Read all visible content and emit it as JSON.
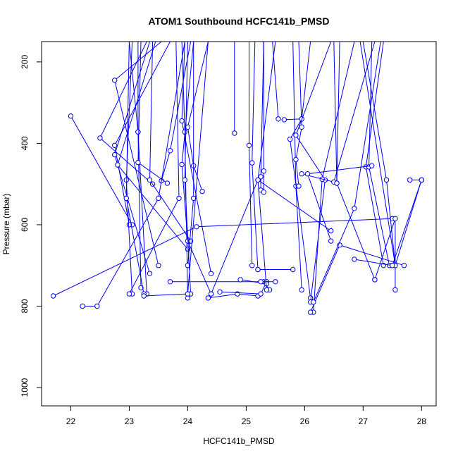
{
  "chart_data": {
    "type": "line",
    "title": "ATOM1 Southbound HCFC141b_PMSD",
    "xlabel": "HCFC141b_PMSD",
    "ylabel": "Pressure (mbar)",
    "xlim": [
      21.5,
      28.25
    ],
    "ylim": [
      1045,
      150
    ],
    "y_reversed": true,
    "x_ticks": [
      22,
      23,
      24,
      25,
      26,
      27,
      28
    ],
    "x_tick_labels": [
      "22",
      "23",
      "24",
      "25",
      "26",
      "27",
      "28"
    ],
    "y_ticks": [
      200,
      400,
      600,
      800,
      1000
    ],
    "y_tick_labels": [
      "200",
      "400",
      "600",
      "800",
      "1000"
    ],
    "grid": false,
    "legend": "none",
    "colors": {
      "series": "#0000ff",
      "axis": "#000000"
    },
    "series": [
      {
        "points": [
          [
            23.55,
            150
          ],
          [
            22.75,
            245
          ],
          [
            23.5,
            700
          ]
        ]
      },
      {
        "points": [
          [
            22.0,
            333
          ],
          [
            23.05,
            600
          ]
        ]
      },
      {
        "points": [
          [
            23.3,
            150
          ],
          [
            22.5,
            387
          ],
          [
            23.4,
            500
          ]
        ]
      },
      {
        "points": [
          [
            23.7,
            150
          ],
          [
            22.75,
            405
          ],
          [
            23.0,
            600
          ]
        ]
      },
      {
        "points": [
          [
            23.35,
            150
          ],
          [
            22.75,
            428
          ],
          [
            23.35,
            720
          ]
        ]
      },
      {
        "points": [
          [
            23.45,
            150
          ],
          [
            22.8,
            453
          ],
          [
            24.0,
            660
          ]
        ]
      },
      {
        "points": [
          [
            23.0,
            150
          ],
          [
            23.15,
            372
          ],
          [
            23.3,
            770
          ]
        ]
      },
      {
        "points": [
          [
            23.15,
            150
          ],
          [
            23.15,
            372
          ],
          [
            23.2,
            755
          ]
        ]
      },
      {
        "points": [
          [
            23.95,
            150
          ],
          [
            23.9,
            345
          ],
          [
            24.4,
            720
          ]
        ]
      },
      {
        "points": [
          [
            24.35,
            150
          ],
          [
            24.0,
            360
          ],
          [
            24.1,
            455
          ],
          [
            24.25,
            518
          ]
        ]
      },
      {
        "points": [
          [
            23.05,
            150
          ],
          [
            22.95,
            490
          ],
          [
            23.05,
            770
          ]
        ]
      },
      {
        "points": [
          [
            24.05,
            150
          ],
          [
            23.7,
            418
          ],
          [
            23.55,
            492
          ]
        ]
      },
      {
        "points": [
          [
            23.9,
            150
          ],
          [
            23.95,
            372
          ],
          [
            24.0,
            780
          ]
        ]
      },
      {
        "points": [
          [
            23.2,
            150
          ],
          [
            23.15,
            447
          ],
          [
            23.65,
            498
          ]
        ]
      },
      {
        "points": [
          [
            24.1,
            150
          ],
          [
            23.9,
            452
          ],
          [
            24.0,
            640
          ],
          [
            24.4,
            770
          ]
        ]
      },
      {
        "points": [
          [
            23.4,
            150
          ],
          [
            23.35,
            490
          ],
          [
            24.05,
            640
          ]
        ]
      },
      {
        "points": [
          [
            23.0,
            150
          ],
          [
            22.95,
            535
          ],
          [
            23.25,
            770
          ]
        ]
      },
      {
        "points": [
          [
            24.1,
            150
          ],
          [
            24.1,
            535
          ],
          [
            24.0,
            700
          ]
        ]
      },
      {
        "points": [
          [
            23.8,
            150
          ],
          [
            23.85,
            535
          ],
          [
            23.0,
            770
          ]
        ]
      },
      {
        "points": [
          [
            24.0,
            150
          ],
          [
            23.95,
            490
          ],
          [
            24.05,
            770
          ]
        ]
      },
      {
        "points": [
          [
            21.7,
            775
          ],
          [
            24.15,
            605
          ],
          [
            27.5,
            585
          ]
        ]
      },
      {
        "points": [
          [
            22.2,
            800
          ],
          [
            22.45,
            800
          ],
          [
            23.5,
            535
          ],
          [
            23.95,
            150
          ]
        ]
      },
      {
        "points": [
          [
            24.35,
            150
          ],
          [
            24.0,
            770
          ],
          [
            23.25,
            775
          ]
        ]
      },
      {
        "points": [
          [
            23.7,
            740
          ],
          [
            25.3,
            740
          ],
          [
            25.4,
            760
          ]
        ]
      },
      {
        "points": [
          [
            24.35,
            780
          ],
          [
            24.85,
            770
          ],
          [
            25.2,
            775
          ]
        ]
      },
      {
        "points": [
          [
            24.55,
            765
          ],
          [
            25.25,
            770
          ],
          [
            25.35,
            740
          ]
        ]
      },
      {
        "points": [
          [
            24.9,
            735
          ],
          [
            25.35,
            745
          ]
        ]
      },
      {
        "points": [
          [
            25.25,
            740
          ],
          [
            25.5,
            740
          ]
        ]
      },
      {
        "points": [
          [
            25.2,
            710
          ],
          [
            25.8,
            710
          ]
        ]
      },
      {
        "points": [
          [
            24.8,
            150
          ],
          [
            24.8,
            375
          ]
        ]
      },
      {
        "points": [
          [
            25.05,
            150
          ],
          [
            25.05,
            405
          ],
          [
            25.1,
            700
          ]
        ]
      },
      {
        "points": [
          [
            25.15,
            150
          ],
          [
            25.1,
            448
          ],
          [
            25.2,
            710
          ]
        ]
      },
      {
        "points": [
          [
            25.3,
            150
          ],
          [
            25.25,
            482
          ],
          [
            25.25,
            515
          ]
        ]
      },
      {
        "points": [
          [
            25.3,
            150
          ],
          [
            25.3,
            468
          ],
          [
            25.3,
            520
          ]
        ]
      },
      {
        "points": [
          [
            25.5,
            150
          ],
          [
            25.2,
            490
          ],
          [
            25.35,
            760
          ]
        ]
      },
      {
        "points": [
          [
            24.4,
            770
          ],
          [
            25.2,
            490
          ],
          [
            26.45,
            615
          ]
        ]
      },
      {
        "points": [
          [
            25.55,
            340
          ],
          [
            25.45,
            150
          ]
        ]
      },
      {
        "points": [
          [
            25.8,
            150
          ],
          [
            25.85,
            505
          ],
          [
            25.95,
            760
          ]
        ]
      },
      {
        "points": [
          [
            25.65,
            342
          ],
          [
            25.95,
            340
          ]
        ]
      },
      {
        "points": [
          [
            25.9,
            150
          ],
          [
            25.95,
            360
          ],
          [
            25.85,
            440
          ],
          [
            25.9,
            505
          ]
        ]
      },
      {
        "points": [
          [
            26.1,
            150
          ],
          [
            25.95,
            340
          ],
          [
            25.75,
            390
          ],
          [
            26.1,
            780
          ]
        ]
      },
      {
        "points": [
          [
            26.45,
            150
          ],
          [
            25.85,
            380
          ],
          [
            26.35,
            490
          ],
          [
            26.1,
            790
          ]
        ]
      },
      {
        "points": [
          [
            26.85,
            150
          ],
          [
            26.3,
            488
          ],
          [
            26.15,
            815
          ]
        ]
      },
      {
        "points": [
          [
            27.2,
            150
          ],
          [
            26.5,
            495
          ],
          [
            25.95,
            475
          ]
        ]
      },
      {
        "points": [
          [
            26.5,
            150
          ],
          [
            26.55,
            498
          ]
        ]
      },
      {
        "points": [
          [
            26.1,
            815
          ],
          [
            26.6,
            650
          ],
          [
            27.7,
            700
          ]
        ]
      },
      {
        "points": [
          [
            27.35,
            150
          ],
          [
            27.05,
            458
          ],
          [
            27.35,
            700
          ]
        ]
      },
      {
        "points": [
          [
            27.15,
            150
          ],
          [
            27.1,
            458
          ],
          [
            27.45,
            700
          ]
        ]
      },
      {
        "points": [
          [
            27.0,
            150
          ],
          [
            27.4,
            490
          ],
          [
            27.55,
            700
          ]
        ]
      },
      {
        "points": [
          [
            26.85,
            685
          ],
          [
            27.5,
            700
          ]
        ]
      },
      {
        "points": [
          [
            27.3,
            150
          ],
          [
            26.85,
            560
          ],
          [
            26.15,
            790
          ]
        ]
      },
      {
        "points": [
          [
            27.2,
            735
          ],
          [
            27.55,
            585
          ],
          [
            27.55,
            760
          ]
        ]
      },
      {
        "points": [
          [
            27.15,
            455
          ],
          [
            26.05,
            475
          ],
          [
            26.45,
            640
          ]
        ]
      },
      {
        "points": [
          [
            26.6,
            150
          ],
          [
            26.55,
            498
          ],
          [
            27.2,
            735
          ]
        ]
      },
      {
        "points": [
          [
            27.8,
            490
          ],
          [
            28.0,
            490
          ]
        ]
      },
      {
        "points": [
          [
            26.95,
            150
          ],
          [
            27.55,
            700
          ],
          [
            28.0,
            490
          ]
        ]
      },
      {
        "points": [
          [
            28.0,
            490
          ],
          [
            27.5,
            700
          ]
        ]
      }
    ]
  }
}
